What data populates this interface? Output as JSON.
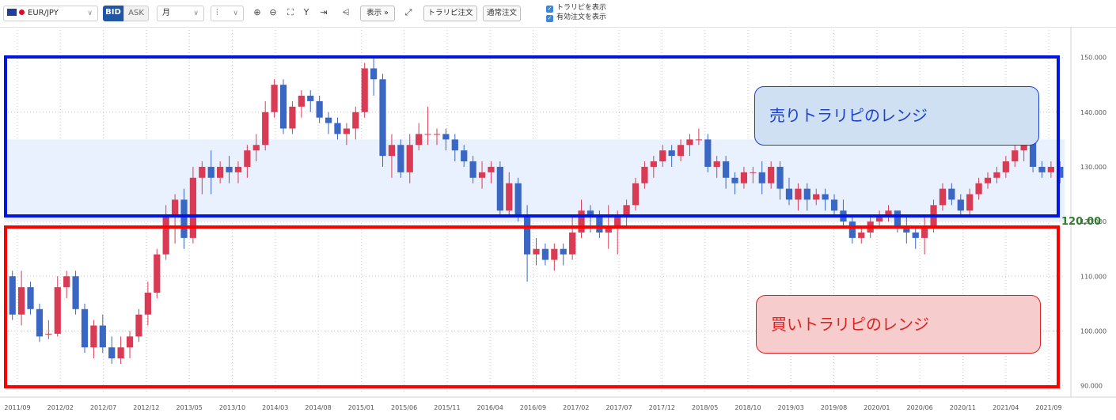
{
  "toolbar": {
    "symbol": "EUR/JPY",
    "bid_label": "BID",
    "ask_label": "ASK",
    "period": "月",
    "chart_type_icon": "candlestick-icon",
    "display_label": "表示",
    "trap_order_label": "トラリピ注文",
    "normal_order_label": "通常注文",
    "show_trap_label": "トラリピを表示",
    "show_valid_orders_label": "有効注文を表示",
    "icons": [
      "zoom-in-icon",
      "zoom-out-icon",
      "fit-icon",
      "scale-icon",
      "jump-latest-icon",
      "indicator-icon",
      "expand-icon"
    ]
  },
  "annotations": {
    "sell_range_label": "売りトラリピのレンジ",
    "buy_range_label": "買いトラリピのレンジ",
    "level_label": "120.00",
    "sell_color": "#0015e0",
    "buy_color": "#ff0000",
    "level_color": "#2e7d2e"
  },
  "chart_data": {
    "type": "candlestick",
    "symbol": "EUR/JPY",
    "timeframe": "monthly",
    "y_ticks": [
      "150.000",
      "140.000",
      "130.000",
      "120.000",
      "110.000",
      "100.000",
      "90.000"
    ],
    "y_range": [
      88.5,
      155
    ],
    "x_labels": [
      "2011/09",
      "2012/02",
      "2012/07",
      "2012/12",
      "2013/05",
      "2013/10",
      "2014/03",
      "2014/08",
      "2015/01",
      "2015/06",
      "2015/11",
      "2016/04",
      "2016/09",
      "2017/02",
      "2017/07",
      "2017/12",
      "2018/05",
      "2018/10",
      "2019/03",
      "2019/08",
      "2020/01",
      "2020/06",
      "2020/11",
      "2021/04",
      "2021/09"
    ],
    "candle_colors": {
      "up": "#d93b55",
      "down": "#3a66c4"
    },
    "highlight_band": [
      120,
      135
    ],
    "candles": [
      [
        110,
        103,
        111,
        102
      ],
      [
        103,
        108,
        111,
        101
      ],
      [
        108,
        104,
        109,
        103
      ],
      [
        104,
        99,
        105,
        98
      ],
      [
        99.5,
        99.5,
        102,
        98.5
      ],
      [
        99.5,
        108,
        110,
        99
      ],
      [
        108,
        110,
        111,
        106
      ],
      [
        110,
        104,
        111,
        103
      ],
      [
        104,
        97,
        105,
        96
      ],
      [
        97,
        101,
        102,
        95
      ],
      [
        101,
        97,
        103,
        96
      ],
      [
        97,
        95,
        99,
        94
      ],
      [
        95,
        97,
        99,
        94
      ],
      [
        97,
        99,
        100,
        95
      ],
      [
        99,
        103,
        104,
        98
      ],
      [
        103,
        107,
        109,
        101
      ],
      [
        107,
        114,
        115,
        106
      ],
      [
        114,
        121,
        123,
        113
      ],
      [
        121,
        124,
        125,
        116
      ],
      [
        124,
        117,
        126,
        115
      ],
      [
        117,
        128,
        130,
        116
      ],
      [
        128,
        130,
        131,
        125
      ],
      [
        130,
        128,
        133,
        125
      ],
      [
        128,
        130,
        131,
        127
      ],
      [
        130,
        129,
        132,
        127
      ],
      [
        129,
        130,
        131,
        127
      ],
      [
        130,
        133,
        134,
        128
      ],
      [
        133,
        134,
        136,
        131
      ],
      [
        134,
        140,
        142,
        133
      ],
      [
        140,
        145,
        146,
        139
      ],
      [
        145,
        137,
        146,
        136
      ],
      [
        137,
        141,
        142,
        136
      ],
      [
        141,
        143,
        144,
        139
      ],
      [
        143,
        142,
        144,
        140
      ],
      [
        142,
        139,
        143,
        138
      ],
      [
        139,
        138,
        140,
        136
      ],
      [
        138,
        136,
        139,
        135
      ],
      [
        136,
        137,
        138,
        134
      ],
      [
        137,
        140,
        141,
        135
      ],
      [
        140,
        148,
        149,
        139
      ],
      [
        148,
        146,
        150,
        143
      ],
      [
        146,
        132,
        147,
        130
      ],
      [
        132,
        134,
        136,
        128
      ],
      [
        134,
        129,
        135,
        128
      ],
      [
        129,
        134,
        136,
        127
      ],
      [
        134,
        136,
        138,
        133
      ],
      [
        136,
        136,
        141,
        134
      ],
      [
        136,
        136,
        137,
        134
      ],
      [
        136,
        135,
        137,
        133
      ],
      [
        135,
        133,
        136,
        131
      ],
      [
        133,
        131,
        134,
        130
      ],
      [
        131,
        128,
        132,
        127
      ],
      [
        128,
        129,
        131,
        126
      ],
      [
        129,
        130,
        131,
        127
      ],
      [
        130,
        122,
        131,
        121
      ],
      [
        122,
        127,
        129,
        121
      ],
      [
        127,
        121,
        128,
        120
      ],
      [
        121,
        114,
        123,
        109
      ],
      [
        114,
        115,
        117,
        112
      ],
      [
        115,
        113,
        116,
        112
      ],
      [
        113,
        115,
        116,
        111
      ],
      [
        115,
        114,
        116,
        112
      ],
      [
        114,
        118,
        121,
        113
      ],
      [
        118,
        122,
        124,
        117
      ],
      [
        122,
        121,
        123,
        118
      ],
      [
        121,
        118,
        122,
        117
      ],
      [
        118,
        119,
        123,
        115
      ],
      [
        119,
        121,
        122,
        114
      ],
      [
        121,
        123,
        124,
        119
      ],
      [
        123,
        127,
        128,
        122
      ],
      [
        127,
        130,
        131,
        126
      ],
      [
        130,
        131,
        132,
        128
      ],
      [
        131,
        133,
        134,
        130
      ],
      [
        133,
        132,
        134,
        130
      ],
      [
        132,
        134,
        135,
        131
      ],
      [
        134,
        135,
        136,
        132
      ],
      [
        135,
        135,
        137,
        134
      ],
      [
        135,
        130,
        136,
        129
      ],
      [
        130,
        131,
        132,
        128
      ],
      [
        131,
        128,
        132,
        126
      ],
      [
        128,
        127,
        129,
        125
      ],
      [
        127,
        129,
        130,
        126
      ],
      [
        129,
        129,
        130,
        127
      ],
      [
        129,
        127,
        131,
        125
      ],
      [
        127,
        130,
        131,
        126
      ],
      [
        130,
        126,
        131,
        124
      ],
      [
        126,
        124,
        128,
        123
      ],
      [
        124,
        126,
        127,
        122
      ],
      [
        126,
        124,
        127,
        122
      ],
      [
        124,
        125,
        126,
        123
      ],
      [
        125,
        124,
        126,
        122
      ],
      [
        124,
        122,
        125,
        121
      ],
      [
        122,
        120,
        124,
        119
      ],
      [
        120,
        117,
        121,
        116
      ],
      [
        117,
        118,
        119,
        116
      ],
      [
        118,
        120,
        121,
        117
      ],
      [
        120,
        121,
        122,
        119
      ],
      [
        121,
        122,
        123,
        120
      ],
      [
        122,
        119,
        122,
        118
      ],
      [
        119,
        118,
        121,
        116
      ],
      [
        118,
        117,
        119,
        115
      ],
      [
        117,
        119,
        121,
        114
      ],
      [
        119,
        123,
        124,
        118
      ],
      [
        123,
        126,
        127,
        122
      ],
      [
        126,
        124,
        127,
        123
      ],
      [
        124,
        122,
        125,
        121
      ],
      [
        122,
        125,
        126,
        121
      ],
      [
        125,
        127,
        128,
        124
      ],
      [
        127,
        128,
        129,
        126
      ],
      [
        128,
        129,
        130,
        127
      ],
      [
        129,
        131,
        132,
        128
      ],
      [
        131,
        133,
        135,
        130
      ],
      [
        133,
        135,
        137,
        131
      ],
      [
        135,
        130,
        136,
        129
      ],
      [
        130,
        129,
        131,
        128
      ],
      [
        129,
        130,
        131,
        128
      ],
      [
        130,
        128,
        131,
        127
      ]
    ]
  }
}
